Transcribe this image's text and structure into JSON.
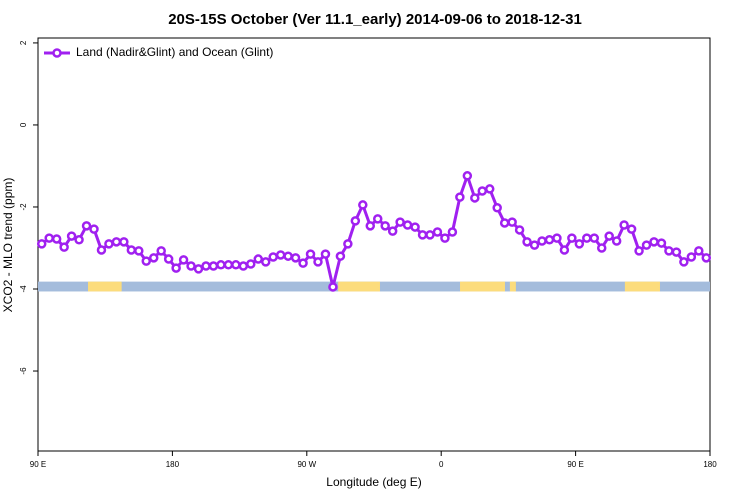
{
  "chart_data": {
    "type": "line",
    "title": "20S-15S October (Ver 11.1_early)   2014-09-06 to 2018-12-31",
    "x_label": "Longitude (deg E)",
    "y_label": "XCO2 - MLO trend (ppm)",
    "xlim": [
      90,
      540
    ],
    "ylim": [
      -7.95,
      2.12
    ],
    "xticks": [
      {
        "value": 90,
        "label": "90 E"
      },
      180,
      {
        "value": 270,
        "label": "90 W"
      },
      {
        "value": 360,
        "label": "0"
      },
      {
        "value": 450,
        "label": "90 E"
      },
      {
        "value": 540,
        "label": "180"
      }
    ],
    "yticks": [
      -6,
      -4,
      -2,
      0,
      2
    ],
    "legend": "top-left",
    "x": [
      92.5,
      97.5,
      102.5,
      107.5,
      112.5,
      117.5,
      122.5,
      127.5,
      132.5,
      137.5,
      142.5,
      147.5,
      152.5,
      157.5,
      162.5,
      167.5,
      172.5,
      177.5,
      182.5,
      187.5,
      192.5,
      197.5,
      202.5,
      207.5,
      212.5,
      217.5,
      222.5,
      227.5,
      232.5,
      237.5,
      242.5,
      247.5,
      252.5,
      257.5,
      262.5,
      267.5,
      272.5,
      277.5,
      282.5,
      287.5,
      292.5,
      297.5,
      302.5,
      307.5,
      312.5,
      317.5,
      322.5,
      327.5,
      332.5,
      337.5,
      342.5,
      347.5,
      352.5,
      357.5,
      362.5,
      367.5,
      372.5,
      377.5,
      382.5,
      387.5,
      392.5,
      397.5,
      402.5,
      407.5,
      412.5,
      417.5,
      422.5,
      427.5,
      432.5,
      437.5,
      442.5,
      447.5,
      452.5,
      457.5,
      462.5,
      467.5,
      472.5,
      477.5,
      482.5,
      487.5,
      492.5,
      497.5,
      502.5,
      507.5,
      512.5,
      517.5,
      522.5,
      527.5,
      532.5,
      537.5
    ],
    "series": [
      {
        "name": "Land (Nadir&Glint) and Ocean (Glint)",
        "color": "#a020f0",
        "values": [
          -2.9,
          -2.76,
          -2.78,
          -2.98,
          -2.71,
          -2.8,
          -2.46,
          -2.54,
          -3.05,
          -2.9,
          -2.85,
          -2.85,
          -3.05,
          -3.07,
          -3.32,
          -3.24,
          -3.07,
          -3.27,
          -3.49,
          -3.29,
          -3.44,
          -3.51,
          -3.44,
          -3.44,
          -3.41,
          -3.41,
          -3.41,
          -3.44,
          -3.39,
          -3.27,
          -3.34,
          -3.22,
          -3.17,
          -3.2,
          -3.24,
          -3.37,
          -3.15,
          -3.34,
          -3.15,
          -3.95,
          -3.2,
          -2.9,
          -2.34,
          -1.95,
          -2.46,
          -2.29,
          -2.46,
          -2.59,
          -2.37,
          -2.44,
          -2.49,
          -2.68,
          -2.68,
          -2.61,
          -2.76,
          -2.61,
          -1.76,
          -1.24,
          -1.78,
          -1.61,
          -1.56,
          -2.02,
          -2.39,
          -2.37,
          -2.56,
          -2.85,
          -2.93,
          -2.83,
          -2.8,
          -2.76,
          -3.05,
          -2.76,
          -2.9,
          -2.76,
          -2.76,
          -3.0,
          -2.71,
          -2.83,
          -2.44,
          -2.54,
          -3.07,
          -2.93,
          -2.85,
          -2.88,
          -3.07,
          -3.1,
          -3.34,
          -3.22,
          -3.07,
          -3.24
        ]
      }
    ],
    "surface_band": {
      "y": [
        -4.06,
        -3.82
      ],
      "ocean_color": "#a4bcdc",
      "land_color": "#fcdc7c",
      "land_ranges": [
        [
          123.5,
          146
        ],
        [
          291,
          319
        ],
        [
          372.6,
          402.7
        ],
        [
          406,
          410
        ],
        [
          483,
          506.5
        ]
      ]
    }
  }
}
